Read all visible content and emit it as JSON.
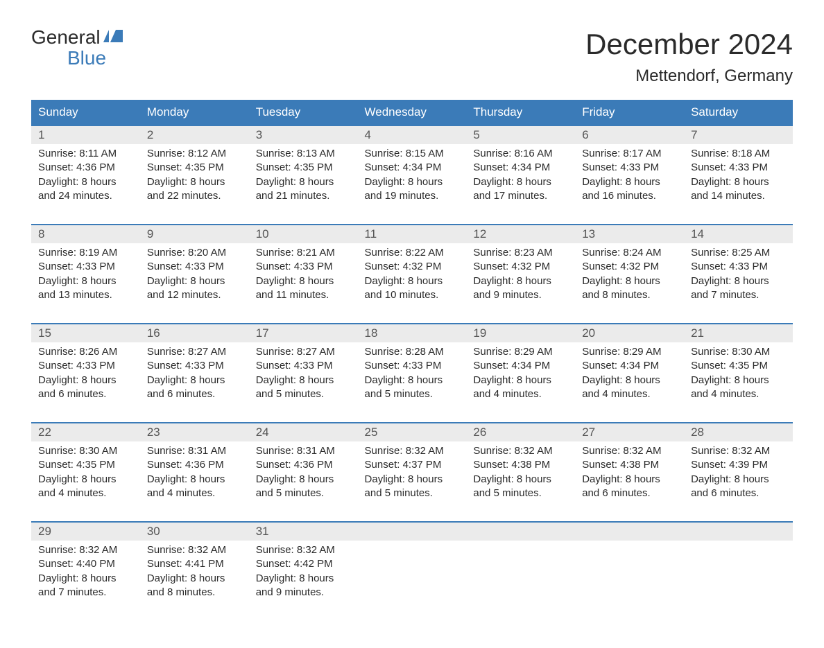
{
  "logo": {
    "text_general": "General",
    "text_blue": "Blue"
  },
  "header": {
    "month_title": "December 2024",
    "location": "Mettendorf, Germany"
  },
  "colors": {
    "header_bg": "#3b7bb8",
    "header_text": "#ffffff",
    "day_number_bg": "#ebebeb",
    "day_number_text": "#555555",
    "body_text": "#2a2a2a",
    "border": "#3b7bb8",
    "logo_blue": "#3b7bb8"
  },
  "weekdays": [
    "Sunday",
    "Monday",
    "Tuesday",
    "Wednesday",
    "Thursday",
    "Friday",
    "Saturday"
  ],
  "weeks": [
    [
      {
        "day": "1",
        "sunrise": "Sunrise: 8:11 AM",
        "sunset": "Sunset: 4:36 PM",
        "daylight1": "Daylight: 8 hours",
        "daylight2": "and 24 minutes."
      },
      {
        "day": "2",
        "sunrise": "Sunrise: 8:12 AM",
        "sunset": "Sunset: 4:35 PM",
        "daylight1": "Daylight: 8 hours",
        "daylight2": "and 22 minutes."
      },
      {
        "day": "3",
        "sunrise": "Sunrise: 8:13 AM",
        "sunset": "Sunset: 4:35 PM",
        "daylight1": "Daylight: 8 hours",
        "daylight2": "and 21 minutes."
      },
      {
        "day": "4",
        "sunrise": "Sunrise: 8:15 AM",
        "sunset": "Sunset: 4:34 PM",
        "daylight1": "Daylight: 8 hours",
        "daylight2": "and 19 minutes."
      },
      {
        "day": "5",
        "sunrise": "Sunrise: 8:16 AM",
        "sunset": "Sunset: 4:34 PM",
        "daylight1": "Daylight: 8 hours",
        "daylight2": "and 17 minutes."
      },
      {
        "day": "6",
        "sunrise": "Sunrise: 8:17 AM",
        "sunset": "Sunset: 4:33 PM",
        "daylight1": "Daylight: 8 hours",
        "daylight2": "and 16 minutes."
      },
      {
        "day": "7",
        "sunrise": "Sunrise: 8:18 AM",
        "sunset": "Sunset: 4:33 PM",
        "daylight1": "Daylight: 8 hours",
        "daylight2": "and 14 minutes."
      }
    ],
    [
      {
        "day": "8",
        "sunrise": "Sunrise: 8:19 AM",
        "sunset": "Sunset: 4:33 PM",
        "daylight1": "Daylight: 8 hours",
        "daylight2": "and 13 minutes."
      },
      {
        "day": "9",
        "sunrise": "Sunrise: 8:20 AM",
        "sunset": "Sunset: 4:33 PM",
        "daylight1": "Daylight: 8 hours",
        "daylight2": "and 12 minutes."
      },
      {
        "day": "10",
        "sunrise": "Sunrise: 8:21 AM",
        "sunset": "Sunset: 4:33 PM",
        "daylight1": "Daylight: 8 hours",
        "daylight2": "and 11 minutes."
      },
      {
        "day": "11",
        "sunrise": "Sunrise: 8:22 AM",
        "sunset": "Sunset: 4:32 PM",
        "daylight1": "Daylight: 8 hours",
        "daylight2": "and 10 minutes."
      },
      {
        "day": "12",
        "sunrise": "Sunrise: 8:23 AM",
        "sunset": "Sunset: 4:32 PM",
        "daylight1": "Daylight: 8 hours",
        "daylight2": "and 9 minutes."
      },
      {
        "day": "13",
        "sunrise": "Sunrise: 8:24 AM",
        "sunset": "Sunset: 4:32 PM",
        "daylight1": "Daylight: 8 hours",
        "daylight2": "and 8 minutes."
      },
      {
        "day": "14",
        "sunrise": "Sunrise: 8:25 AM",
        "sunset": "Sunset: 4:33 PM",
        "daylight1": "Daylight: 8 hours",
        "daylight2": "and 7 minutes."
      }
    ],
    [
      {
        "day": "15",
        "sunrise": "Sunrise: 8:26 AM",
        "sunset": "Sunset: 4:33 PM",
        "daylight1": "Daylight: 8 hours",
        "daylight2": "and 6 minutes."
      },
      {
        "day": "16",
        "sunrise": "Sunrise: 8:27 AM",
        "sunset": "Sunset: 4:33 PM",
        "daylight1": "Daylight: 8 hours",
        "daylight2": "and 6 minutes."
      },
      {
        "day": "17",
        "sunrise": "Sunrise: 8:27 AM",
        "sunset": "Sunset: 4:33 PM",
        "daylight1": "Daylight: 8 hours",
        "daylight2": "and 5 minutes."
      },
      {
        "day": "18",
        "sunrise": "Sunrise: 8:28 AM",
        "sunset": "Sunset: 4:33 PM",
        "daylight1": "Daylight: 8 hours",
        "daylight2": "and 5 minutes."
      },
      {
        "day": "19",
        "sunrise": "Sunrise: 8:29 AM",
        "sunset": "Sunset: 4:34 PM",
        "daylight1": "Daylight: 8 hours",
        "daylight2": "and 4 minutes."
      },
      {
        "day": "20",
        "sunrise": "Sunrise: 8:29 AM",
        "sunset": "Sunset: 4:34 PM",
        "daylight1": "Daylight: 8 hours",
        "daylight2": "and 4 minutes."
      },
      {
        "day": "21",
        "sunrise": "Sunrise: 8:30 AM",
        "sunset": "Sunset: 4:35 PM",
        "daylight1": "Daylight: 8 hours",
        "daylight2": "and 4 minutes."
      }
    ],
    [
      {
        "day": "22",
        "sunrise": "Sunrise: 8:30 AM",
        "sunset": "Sunset: 4:35 PM",
        "daylight1": "Daylight: 8 hours",
        "daylight2": "and 4 minutes."
      },
      {
        "day": "23",
        "sunrise": "Sunrise: 8:31 AM",
        "sunset": "Sunset: 4:36 PM",
        "daylight1": "Daylight: 8 hours",
        "daylight2": "and 4 minutes."
      },
      {
        "day": "24",
        "sunrise": "Sunrise: 8:31 AM",
        "sunset": "Sunset: 4:36 PM",
        "daylight1": "Daylight: 8 hours",
        "daylight2": "and 5 minutes."
      },
      {
        "day": "25",
        "sunrise": "Sunrise: 8:32 AM",
        "sunset": "Sunset: 4:37 PM",
        "daylight1": "Daylight: 8 hours",
        "daylight2": "and 5 minutes."
      },
      {
        "day": "26",
        "sunrise": "Sunrise: 8:32 AM",
        "sunset": "Sunset: 4:38 PM",
        "daylight1": "Daylight: 8 hours",
        "daylight2": "and 5 minutes."
      },
      {
        "day": "27",
        "sunrise": "Sunrise: 8:32 AM",
        "sunset": "Sunset: 4:38 PM",
        "daylight1": "Daylight: 8 hours",
        "daylight2": "and 6 minutes."
      },
      {
        "day": "28",
        "sunrise": "Sunrise: 8:32 AM",
        "sunset": "Sunset: 4:39 PM",
        "daylight1": "Daylight: 8 hours",
        "daylight2": "and 6 minutes."
      }
    ],
    [
      {
        "day": "29",
        "sunrise": "Sunrise: 8:32 AM",
        "sunset": "Sunset: 4:40 PM",
        "daylight1": "Daylight: 8 hours",
        "daylight2": "and 7 minutes."
      },
      {
        "day": "30",
        "sunrise": "Sunrise: 8:32 AM",
        "sunset": "Sunset: 4:41 PM",
        "daylight1": "Daylight: 8 hours",
        "daylight2": "and 8 minutes."
      },
      {
        "day": "31",
        "sunrise": "Sunrise: 8:32 AM",
        "sunset": "Sunset: 4:42 PM",
        "daylight1": "Daylight: 8 hours",
        "daylight2": "and 9 minutes."
      },
      null,
      null,
      null,
      null
    ]
  ]
}
